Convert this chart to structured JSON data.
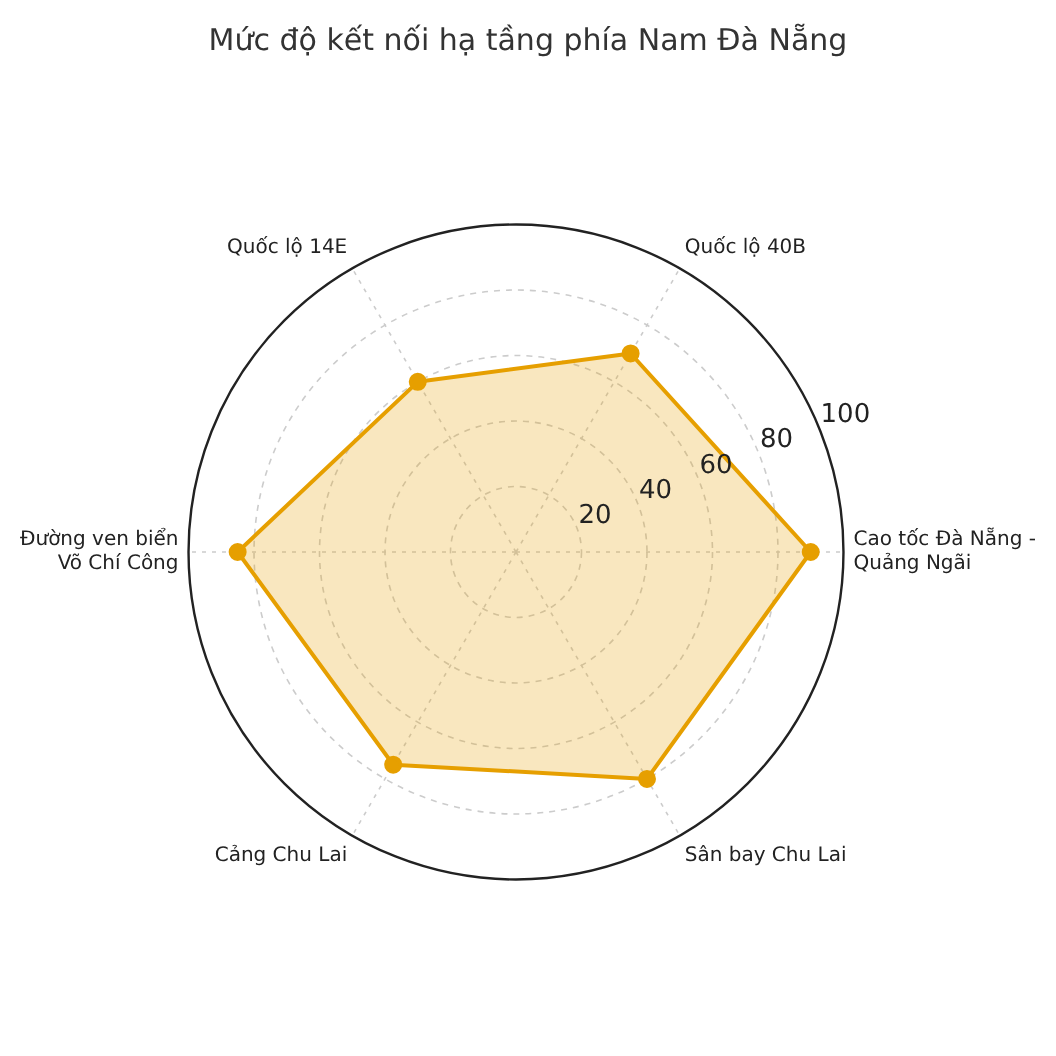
{
  "chart_data": {
    "type": "radar",
    "title": "Mức độ kết nối hạ tầng phía Nam Đà Nẵng",
    "categories": [
      "Quốc lộ 40B",
      "Cao tốc Đà Nẵng - Quảng Ngãi",
      "Sân bay Chu Lai",
      "Cảng Chu Lai",
      "Đường ven biển Võ Chí Công",
      "Quốc lộ 14E"
    ],
    "series": [
      {
        "color": "#e69f00",
        "values": [
          70,
          90,
          80,
          75,
          85,
          60
        ]
      }
    ],
    "ylim": [
      0,
      100
    ],
    "yticks": [
      20,
      40,
      60,
      80,
      100
    ],
    "grid": true,
    "marker": "circle"
  }
}
